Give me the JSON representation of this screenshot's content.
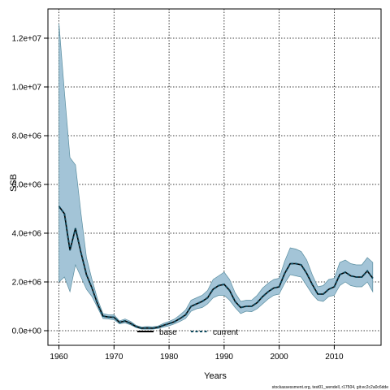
{
  "chart_data": {
    "type": "line",
    "xlabel": "Years",
    "ylabel": "SSB",
    "xlim": [
      1958,
      2018.5
    ],
    "ylim": [
      -600000,
      13200000
    ],
    "x_ticks": [
      1960,
      1970,
      1980,
      1990,
      2000,
      2010
    ],
    "x_tick_labels": [
      "1960",
      "1970",
      "1980",
      "1990",
      "2000",
      "2010"
    ],
    "y_ticks": [
      0,
      2000000,
      4000000,
      6000000,
      8000000,
      10000000,
      12000000
    ],
    "y_tick_labels": [
      "0.0e+00",
      "2.0e+06",
      "4.0e+06",
      "6.0e+06",
      "8.0e+06",
      "1.0e+07",
      "1.2e+07"
    ],
    "grid": true,
    "legend_position": "bottom",
    "band_color": "#a3c4d7",
    "band_edge_color": "#5a8ea0",
    "x": [
      1960,
      1961,
      1962,
      1963,
      1964,
      1965,
      1966,
      1967,
      1968,
      1969,
      1970,
      1971,
      1972,
      1973,
      1974,
      1975,
      1976,
      1977,
      1978,
      1979,
      1980,
      1981,
      1982,
      1983,
      1984,
      1985,
      1986,
      1987,
      1988,
      1989,
      1990,
      1991,
      1992,
      1993,
      1994,
      1995,
      1996,
      1997,
      1998,
      1999,
      2000,
      2001,
      2002,
      2003,
      2004,
      2005,
      2006,
      2007,
      2008,
      2009,
      2010,
      2011,
      2012,
      2013,
      2014,
      2015,
      2016,
      2017
    ],
    "upper": [
      12600000,
      9800000,
      7100000,
      6800000,
      4800000,
      3000000,
      2100000,
      1300000,
      700000,
      650000,
      650000,
      400000,
      480000,
      380000,
      220000,
      150000,
      170000,
      160000,
      190000,
      300000,
      380000,
      480000,
      650000,
      850000,
      1250000,
      1350000,
      1450000,
      1650000,
      2100000,
      2250000,
      2400000,
      2100000,
      1550000,
      1200000,
      1250000,
      1250000,
      1450000,
      1750000,
      1950000,
      2100000,
      2150000,
      2850000,
      3400000,
      3350000,
      3250000,
      2900000,
      2300000,
      1800000,
      1850000,
      2100000,
      2150000,
      2800000,
      2900000,
      2750000,
      2700000,
      2700000,
      3000000,
      2800000
    ],
    "lower": [
      2000000,
      2200000,
      1600000,
      2700000,
      2200000,
      1700000,
      1400000,
      950000,
      500000,
      480000,
      450000,
      280000,
      320000,
      240000,
      130000,
      60000,
      60000,
      60000,
      90000,
      150000,
      200000,
      280000,
      380000,
      500000,
      800000,
      900000,
      950000,
      1100000,
      1350000,
      1450000,
      1450000,
      1250000,
      950000,
      700000,
      800000,
      780000,
      900000,
      1100000,
      1300000,
      1450000,
      1500000,
      1950000,
      2300000,
      2250000,
      2200000,
      1850000,
      1500000,
      1250000,
      1200000,
      1400000,
      1450000,
      1850000,
      2000000,
      1850000,
      1800000,
      1800000,
      2000000,
      1600000
    ],
    "series": [
      {
        "name": "base",
        "color": "#000000",
        "style": "solid",
        "values": [
          5100000,
          4800000,
          3300000,
          4200000,
          3200000,
          2300000,
          1750000,
          1100000,
          600000,
          560000,
          550000,
          340000,
          400000,
          300000,
          170000,
          100000,
          110000,
          100000,
          140000,
          220000,
          290000,
          370000,
          500000,
          650000,
          1000000,
          1100000,
          1200000,
          1350000,
          1700000,
          1850000,
          1900000,
          1650000,
          1200000,
          950000,
          1000000,
          1000000,
          1150000,
          1400000,
          1600000,
          1750000,
          1800000,
          2350000,
          2750000,
          2750000,
          2700000,
          2350000,
          1900000,
          1500000,
          1500000,
          1700000,
          1800000,
          2300000,
          2400000,
          2250000,
          2200000,
          2200000,
          2450000,
          2150000
        ]
      },
      {
        "name": "current",
        "color": "#0e4a5e",
        "style": "dashed",
        "values": [
          5100000,
          4800000,
          3300000,
          4200000,
          3200000,
          2300000,
          1750000,
          1100000,
          600000,
          560000,
          550000,
          340000,
          400000,
          300000,
          170000,
          100000,
          110000,
          100000,
          140000,
          220000,
          290000,
          370000,
          500000,
          650000,
          1000000,
          1100000,
          1200000,
          1350000,
          1700000,
          1850000,
          1900000,
          1650000,
          1200000,
          950000,
          1000000,
          1000000,
          1150000,
          1400000,
          1600000,
          1750000,
          1800000,
          2350000,
          2750000,
          2750000,
          2700000,
          2350000,
          1900000,
          1500000,
          1500000,
          1700000,
          1800000,
          2300000,
          2400000,
          2250000,
          2200000,
          2200000,
          2450000,
          2150000
        ]
      }
    ]
  },
  "footnote": "stockassessment.org, test01_wendell, r17504, git:ec2c2a0c6dde"
}
